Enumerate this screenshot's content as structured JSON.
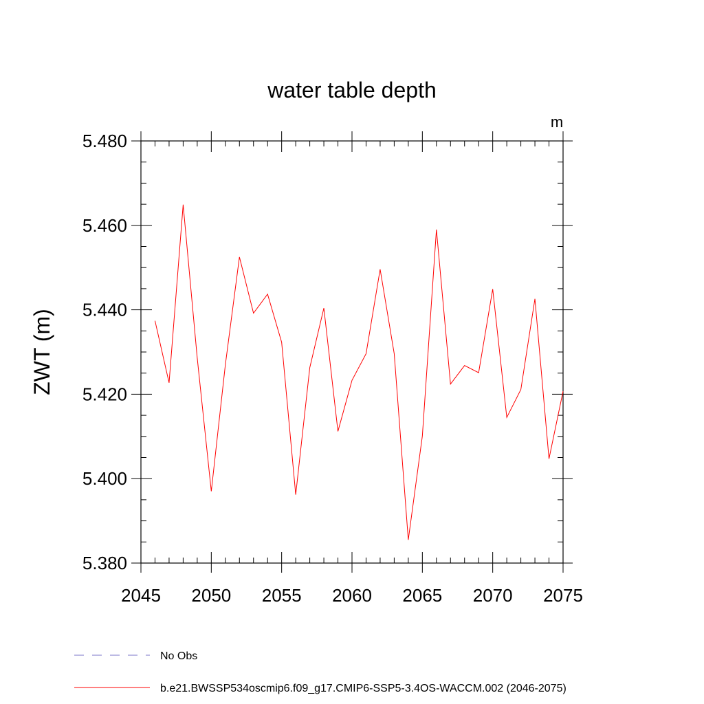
{
  "chart_data": {
    "type": "line",
    "title": "water table depth",
    "units": "m",
    "ylabel": "ZWT  (m)",
    "xlabel": "",
    "xlim": [
      2045,
      2075
    ],
    "ylim": [
      5.38,
      5.48
    ],
    "x_ticks": [
      "2045",
      "2050",
      "2055",
      "2060",
      "2065",
      "2070",
      "2075"
    ],
    "y_ticks": [
      "5.380",
      "5.400",
      "5.420",
      "5.440",
      "5.460",
      "5.480"
    ],
    "grid": false,
    "legend_position": "bottom",
    "series": [
      {
        "name": "b.e21.BWSSP534oscmip6.f09_g17.CMIP6-SSP5-3.4OS-WACCM.002 (2046-2075)",
        "color": "#ff0000",
        "style": "solid",
        "x": [
          2046,
          2047,
          2048,
          2049,
          2050,
          2051,
          2052,
          2053,
          2054,
          2055,
          2056,
          2057,
          2058,
          2059,
          2060,
          2061,
          2062,
          2063,
          2064,
          2065,
          2066,
          2067,
          2068,
          2069,
          2070,
          2071,
          2072,
          2073,
          2074,
          2075
        ],
        "values": [
          5.4374,
          5.4227,
          5.4649,
          5.4286,
          5.397,
          5.427,
          5.4525,
          5.4392,
          5.4437,
          5.4323,
          5.3962,
          5.4263,
          5.4404,
          5.4112,
          5.4233,
          5.4296,
          5.4496,
          5.4296,
          5.3855,
          5.4101,
          5.459,
          5.4224,
          5.4268,
          5.4251,
          5.4449,
          5.4145,
          5.4211,
          5.4426,
          5.4047,
          5.4207
        ]
      },
      {
        "name": "No Obs",
        "color": "#7b74c9",
        "style": "dashed",
        "x": [],
        "values": []
      }
    ]
  }
}
